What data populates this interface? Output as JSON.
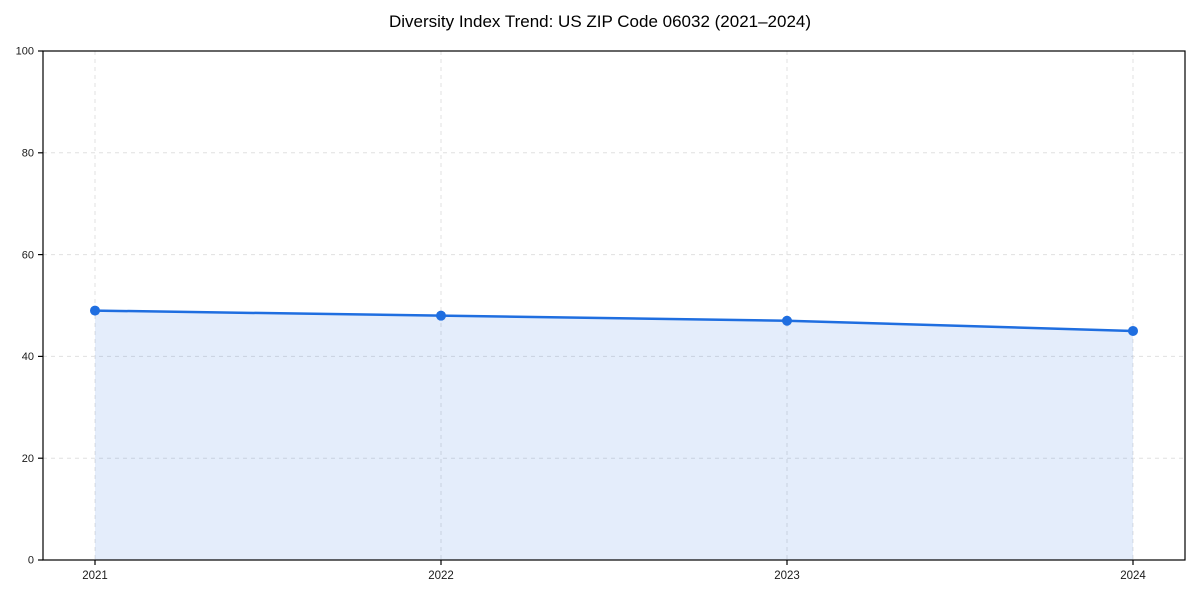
{
  "chart_data": {
    "type": "area",
    "title": "Diversity Index Trend: US ZIP Code 06032 (2021–2024)",
    "xlabel": "",
    "ylabel": "",
    "categories": [
      "2021",
      "2022",
      "2023",
      "2024"
    ],
    "series": [
      {
        "name": "Diversity Index",
        "values": [
          49,
          48,
          47,
          45
        ]
      }
    ],
    "ylim": [
      0,
      100
    ],
    "yticks": [
      0,
      20,
      40,
      60,
      80,
      100
    ],
    "grid": true,
    "grid_style": "dashed",
    "legend_position": "none",
    "colors": {
      "line": "#1f6ee0",
      "marker": "#1f6ee0",
      "fill": "rgba(31, 110, 224, 0.12)",
      "gridline": "#e0e0e0",
      "axis": "#000000",
      "tick_label": "#1a1a1a",
      "background": "#ffffff"
    }
  }
}
